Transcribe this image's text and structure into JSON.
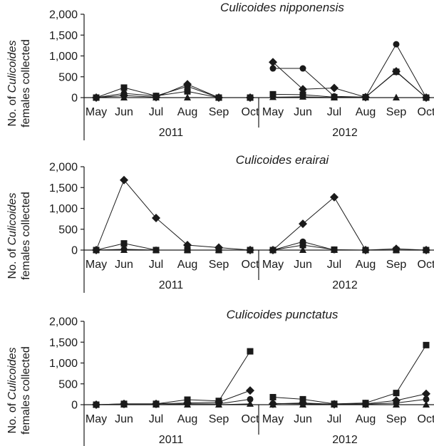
{
  "chart_data": [
    {
      "type": "line",
      "title": "Culicoides nipponensis",
      "ylabel_line1_prefix": "No. of ",
      "ylabel_line1_italic": "Culicoides",
      "ylabel_line2": "females collected",
      "ylim": [
        0,
        2000
      ],
      "y_ticks": [
        "2,000",
        "1,500",
        "1,000",
        "500",
        "0"
      ],
      "categories": [
        "May",
        "Jun",
        "Jul",
        "Aug",
        "Sep",
        "Oct"
      ],
      "years": [
        "2011",
        "2012"
      ],
      "marker_series": [
        {
          "marker": "diamond",
          "y2011": [
            0,
            50,
            10,
            320,
            0,
            0
          ],
          "y2012": [
            850,
            200,
            230,
            10,
            630,
            0
          ]
        },
        {
          "marker": "circle",
          "y2011": [
            0,
            100,
            40,
            270,
            0,
            0
          ],
          "y2012": [
            700,
            700,
            30,
            10,
            1280,
            0
          ]
        },
        {
          "marker": "square",
          "y2011": [
            0,
            240,
            40,
            150,
            0,
            0
          ],
          "y2012": [
            80,
            70,
            10,
            10,
            620,
            0
          ]
        },
        {
          "marker": "triangle",
          "y2011": [
            0,
            0,
            0,
            0,
            0,
            0
          ],
          "y2012": [
            10,
            20,
            0,
            0,
            0,
            0
          ]
        }
      ]
    },
    {
      "type": "line",
      "title": "Culicoides erairai",
      "ylabel_line1_prefix": "No. of ",
      "ylabel_line1_italic": "Culicoides",
      "ylabel_line2": "females collected",
      "ylim": [
        0,
        2000
      ],
      "y_ticks": [
        "2,000",
        "1,500",
        "1,000",
        "500",
        "0"
      ],
      "categories": [
        "May",
        "Jun",
        "Jul",
        "Aug",
        "Sep",
        "Oct"
      ],
      "years": [
        "2011",
        "2012"
      ],
      "marker_series": [
        {
          "marker": "diamond",
          "y2011": [
            0,
            1680,
            770,
            120,
            60,
            0
          ],
          "y2012": [
            0,
            630,
            1270,
            0,
            30,
            0
          ]
        },
        {
          "marker": "circle",
          "y2011": [
            0,
            20,
            0,
            0,
            0,
            0
          ],
          "y2012": [
            0,
            200,
            0,
            0,
            0,
            0
          ]
        },
        {
          "marker": "square",
          "y2011": [
            0,
            160,
            0,
            0,
            0,
            0
          ],
          "y2012": [
            0,
            120,
            10,
            0,
            0,
            0
          ]
        },
        {
          "marker": "triangle",
          "y2011": [
            0,
            0,
            0,
            0,
            0,
            0
          ],
          "y2012": [
            0,
            0,
            0,
            0,
            0,
            0
          ]
        }
      ]
    },
    {
      "type": "line",
      "title": "Culicoides punctatus",
      "ylabel_line1_prefix": "No. of ",
      "ylabel_line1_italic": "Culicoides",
      "ylabel_line2": "females collected",
      "ylim": [
        0,
        2000
      ],
      "y_ticks": [
        "2,000",
        "1,500",
        "1,000",
        "500",
        "0"
      ],
      "categories": [
        "May",
        "Jun",
        "Jul",
        "Aug",
        "Sep",
        "Oct"
      ],
      "years": [
        "2011",
        "2012"
      ],
      "marker_series": [
        {
          "marker": "diamond",
          "y2011": [
            0,
            20,
            20,
            40,
            60,
            340
          ],
          "y2012": [
            20,
            40,
            10,
            20,
            100,
            260
          ]
        },
        {
          "marker": "circle",
          "y2011": [
            0,
            0,
            0,
            20,
            20,
            130
          ],
          "y2012": [
            30,
            20,
            10,
            10,
            40,
            130
          ]
        },
        {
          "marker": "square",
          "y2011": [
            0,
            20,
            20,
            120,
            90,
            1280
          ],
          "y2012": [
            180,
            130,
            20,
            40,
            280,
            1430
          ]
        },
        {
          "marker": "triangle",
          "y2011": [
            0,
            0,
            0,
            0,
            0,
            20
          ],
          "y2012": [
            0,
            0,
            0,
            0,
            0,
            0
          ]
        }
      ]
    }
  ]
}
